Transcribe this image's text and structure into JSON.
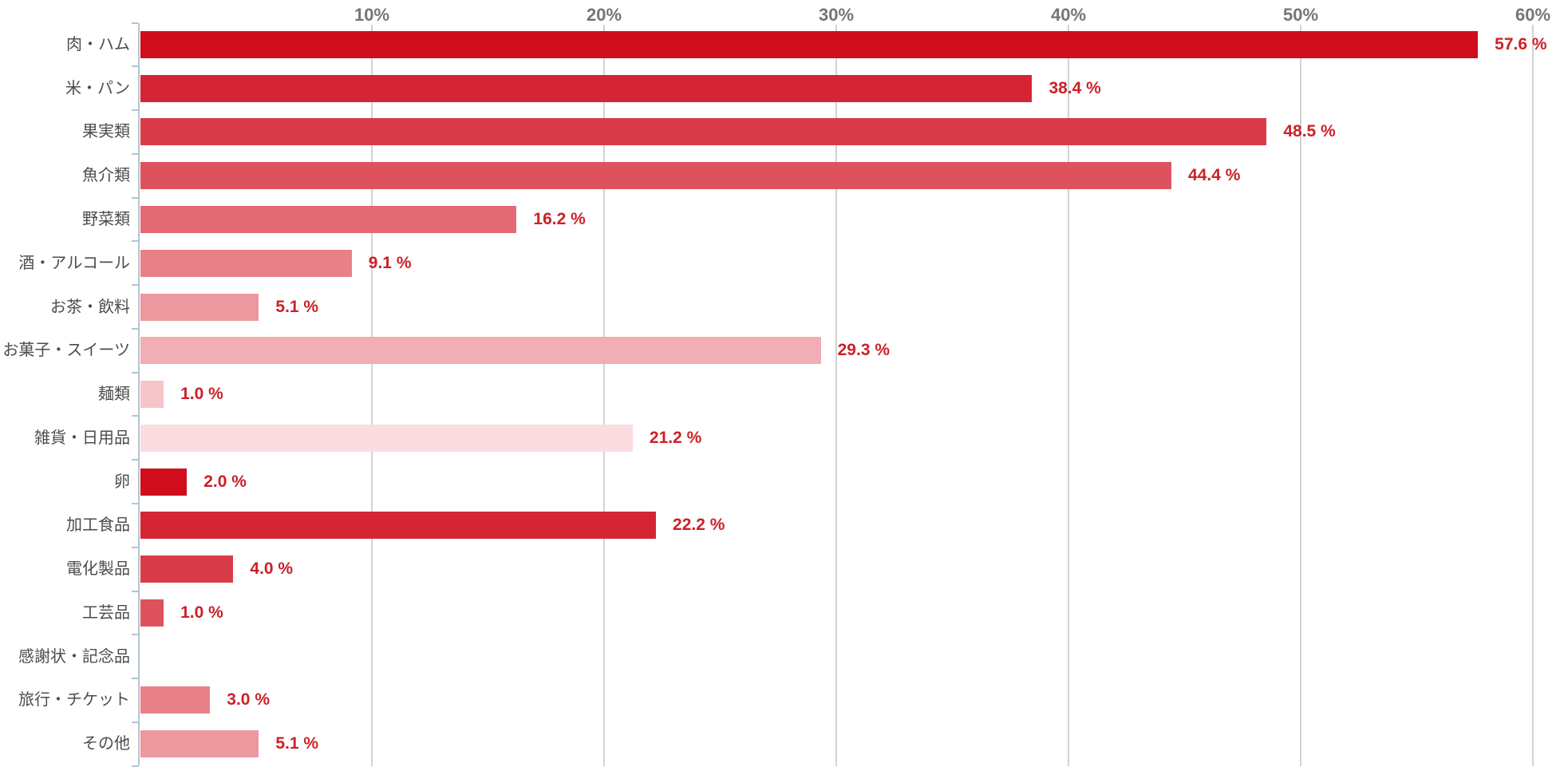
{
  "chart_data": {
    "type": "bar",
    "orientation": "horizontal",
    "title": "",
    "xlabel": "",
    "ylabel": "",
    "xlim": [
      0,
      60
    ],
    "grid": true,
    "tick_position": "top",
    "categories": [
      "肉・ハム",
      "米・パン",
      "果実類",
      "魚介類",
      "野菜類",
      "酒・アルコール",
      "お茶・飲料",
      "お菓子・スイーツ",
      "麺類",
      "雑貨・日用品",
      "卵",
      "加工食品",
      "電化製品",
      "工芸品",
      "感謝状・記念品",
      "旅行・チケット",
      "その他"
    ],
    "values": [
      57.6,
      38.4,
      48.5,
      44.4,
      16.2,
      9.1,
      5.1,
      29.3,
      1.0,
      21.2,
      2.0,
      22.2,
      4.0,
      1.0,
      null,
      3.0,
      5.1
    ],
    "value_labels": [
      "57.6 %",
      "38.4 %",
      "48.5 %",
      "44.4 %",
      "16.2 %",
      "9.1 %",
      "5.1 %",
      "29.3 %",
      "1.0 %",
      "21.2 %",
      "2.0 %",
      "22.2 %",
      "4.0 %",
      "1.0 %",
      "",
      "3.0 %",
      "5.1 %"
    ],
    "x_ticks": [
      "10%",
      "20%",
      "30%",
      "40%",
      "50%",
      "60%"
    ],
    "x_tick_values": [
      10,
      20,
      30,
      40,
      50,
      60
    ],
    "bar_palette": [
      "#d00d1d",
      "#d52433",
      "#da3b48",
      "#de525e",
      "#e36974",
      "#e88089",
      "#ed979f",
      "#f2aeb5",
      "#f6c5ca",
      "#fbdce0"
    ],
    "colors": {
      "value_label": "#cb2127",
      "category_label": "#4c4c4c",
      "tick_label": "#757575",
      "gridline": "#d2d2d2",
      "axis_line": "#b6c4d0",
      "background": "#ffffff"
    }
  }
}
